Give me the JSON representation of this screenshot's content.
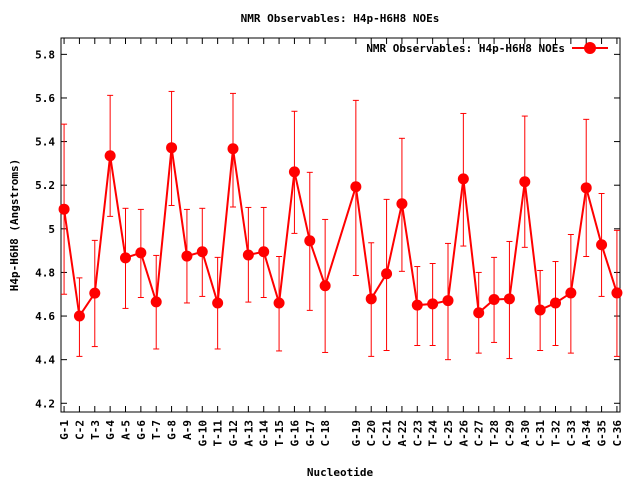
{
  "chart_data": {
    "type": "line",
    "title": "NMR Observables: H4p-H6H8 NOEs",
    "xlabel": "Nucleotide",
    "ylabel": "H4p-H6H8 (Angstroms)",
    "ylim": [
      4.16,
      5.875
    ],
    "xlim": [
      0.8,
      37.2
    ],
    "yticks": [
      4.2,
      4.4,
      4.6,
      4.8,
      5,
      5.2,
      5.4,
      5.6,
      5.8
    ],
    "grid": false,
    "legend": {
      "label": "NMR Observables: H4p-H6H8 NOEs",
      "placement": "top-right"
    },
    "color": "#ff0000",
    "series": [
      {
        "name": "NMR Observables: H4p-H6H8 NOEs",
        "points": [
          {
            "label": "G-1",
            "x": 1,
            "y": 5.09,
            "ylow": 4.7,
            "yhigh": 5.48
          },
          {
            "label": "C-2",
            "x": 2,
            "y": 4.6,
            "ylow": 4.415,
            "yhigh": 4.775
          },
          {
            "label": "T-3",
            "x": 3,
            "y": 4.705,
            "ylow": 4.46,
            "yhigh": 4.947
          },
          {
            "label": "G-4",
            "x": 4,
            "y": 5.335,
            "ylow": 5.057,
            "yhigh": 5.612
          },
          {
            "label": "A-5",
            "x": 5,
            "y": 4.867,
            "ylow": 4.635,
            "yhigh": 5.094
          },
          {
            "label": "G-6",
            "x": 6,
            "y": 4.89,
            "ylow": 4.685,
            "yhigh": 5.089
          },
          {
            "label": "T-7",
            "x": 7,
            "y": 4.665,
            "ylow": 4.449,
            "yhigh": 4.878
          },
          {
            "label": "G-8",
            "x": 8,
            "y": 5.372,
            "ylow": 5.107,
            "yhigh": 5.63
          },
          {
            "label": "A-9",
            "x": 9,
            "y": 4.875,
            "ylow": 4.66,
            "yhigh": 5.089
          },
          {
            "label": "G-10",
            "x": 10,
            "y": 4.895,
            "ylow": 4.69,
            "yhigh": 5.094
          },
          {
            "label": "T-11",
            "x": 11,
            "y": 4.66,
            "ylow": 4.449,
            "yhigh": 4.869
          },
          {
            "label": "G-12",
            "x": 12,
            "y": 5.367,
            "ylow": 5.1,
            "yhigh": 5.621
          },
          {
            "label": "A-13",
            "x": 13,
            "y": 4.88,
            "ylow": 4.664,
            "yhigh": 5.098
          },
          {
            "label": "G-14",
            "x": 14,
            "y": 4.895,
            "ylow": 4.685,
            "yhigh": 5.098
          },
          {
            "label": "T-15",
            "x": 15,
            "y": 4.66,
            "ylow": 4.44,
            "yhigh": 4.873
          },
          {
            "label": "G-16",
            "x": 16,
            "y": 5.261,
            "ylow": 4.979,
            "yhigh": 5.539
          },
          {
            "label": "G-17",
            "x": 17,
            "y": 4.945,
            "ylow": 4.626,
            "yhigh": 5.259
          },
          {
            "label": "C-18",
            "x": 18,
            "y": 4.739,
            "ylow": 4.433,
            "yhigh": 5.043
          },
          {
            "label": "G-19",
            "x": 20,
            "y": 5.193,
            "ylow": 4.786,
            "yhigh": 5.589
          },
          {
            "label": "C-20",
            "x": 21,
            "y": 4.679,
            "ylow": 4.415,
            "yhigh": 4.936
          },
          {
            "label": "C-21",
            "x": 22,
            "y": 4.794,
            "ylow": 4.442,
            "yhigh": 5.135
          },
          {
            "label": "A-22",
            "x": 23,
            "y": 5.115,
            "ylow": 4.805,
            "yhigh": 5.415
          },
          {
            "label": "C-23",
            "x": 24,
            "y": 4.65,
            "ylow": 4.465,
            "yhigh": 4.827
          },
          {
            "label": "T-24",
            "x": 25,
            "y": 4.656,
            "ylow": 4.465,
            "yhigh": 4.841
          },
          {
            "label": "C-25",
            "x": 26,
            "y": 4.671,
            "ylow": 4.4,
            "yhigh": 4.933
          },
          {
            "label": "A-26",
            "x": 27,
            "y": 5.229,
            "ylow": 4.921,
            "yhigh": 5.529
          },
          {
            "label": "C-27",
            "x": 28,
            "y": 4.615,
            "ylow": 4.43,
            "yhigh": 4.8
          },
          {
            "label": "T-28",
            "x": 29,
            "y": 4.676,
            "ylow": 4.479,
            "yhigh": 4.869
          },
          {
            "label": "C-29",
            "x": 30,
            "y": 4.679,
            "ylow": 4.405,
            "yhigh": 4.942
          },
          {
            "label": "A-30",
            "x": 31,
            "y": 5.216,
            "ylow": 4.915,
            "yhigh": 5.517
          },
          {
            "label": "C-31",
            "x": 32,
            "y": 4.628,
            "ylow": 4.442,
            "yhigh": 4.809
          },
          {
            "label": "T-32",
            "x": 33,
            "y": 4.66,
            "ylow": 4.465,
            "yhigh": 4.85
          },
          {
            "label": "C-33",
            "x": 34,
            "y": 4.706,
            "ylow": 4.43,
            "yhigh": 4.974
          },
          {
            "label": "A-34",
            "x": 35,
            "y": 5.188,
            "ylow": 4.873,
            "yhigh": 5.502
          },
          {
            "label": "G-35",
            "x": 36,
            "y": 4.927,
            "ylow": 4.69,
            "yhigh": 5.162
          },
          {
            "label": "C-36",
            "x": 37,
            "y": 4.706,
            "ylow": 4.415,
            "yhigh": 4.993
          }
        ]
      }
    ]
  }
}
